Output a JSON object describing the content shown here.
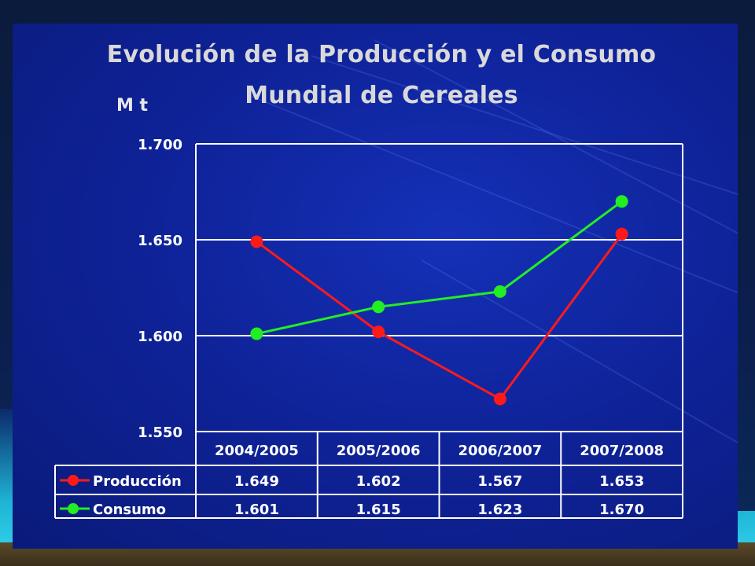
{
  "chart_data": {
    "type": "line",
    "title_line1": "Evolución de la Producción y el Consumo",
    "title_line2": "Mundial de Cereales",
    "ylabel": "M t",
    "ylim": [
      1550,
      1700
    ],
    "yticks": [
      1700,
      1650,
      1600,
      1550
    ],
    "ytick_labels": [
      "1.700",
      "1.650",
      "1.600",
      "1.550"
    ],
    "grid": true,
    "categories": [
      "2004/2005",
      "2005/2006",
      "2006/2007",
      "2007/2008"
    ],
    "series": [
      {
        "name": "Producción",
        "color": "#ff1a1a",
        "values": [
          1649,
          1602,
          1567,
          1653
        ],
        "labels": [
          "1.649",
          "1.602",
          "1.567",
          "1.653"
        ]
      },
      {
        "name": "Consumo",
        "color": "#22ee22",
        "values": [
          1601,
          1615,
          1623,
          1670
        ],
        "labels": [
          "1.601",
          "1.615",
          "1.623",
          "1.670"
        ]
      }
    ],
    "data_table": true
  },
  "colors": {
    "plot_background": "#0f239a",
    "grid": "#ffffff",
    "text": "#ffffff",
    "title": "#d9d9d9"
  }
}
